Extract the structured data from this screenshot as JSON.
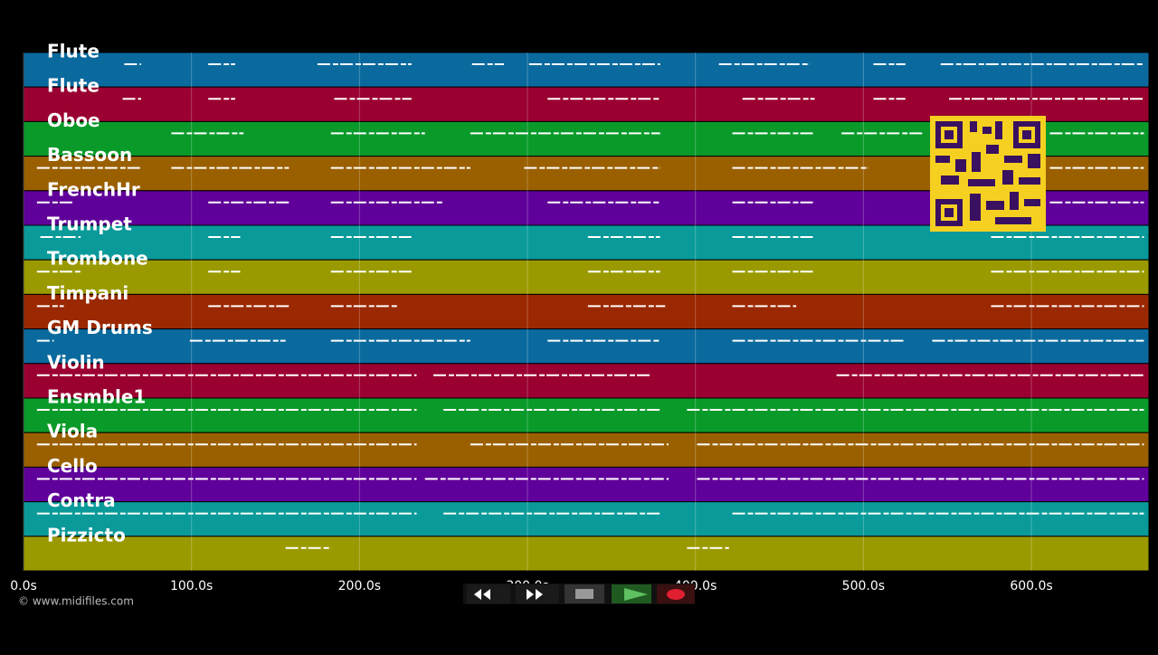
{
  "chart_data": {
    "type": "timeline",
    "xlim": [
      0,
      670
    ],
    "grid": true,
    "xticks": [
      {
        "value": 0,
        "label": "0.0s"
      },
      {
        "value": 100,
        "label": "100.0s"
      },
      {
        "value": 200,
        "label": "200.0s"
      },
      {
        "value": 300,
        "label": "300.0s"
      },
      {
        "value": 400,
        "label": "400.0s"
      },
      {
        "value": 500,
        "label": "500.0s"
      },
      {
        "value": 600,
        "label": "600.0s"
      }
    ],
    "tracks": [
      {
        "name": "Flute",
        "color": "#0a6a9e",
        "segments": [
          [
            60,
            70
          ],
          [
            110,
            126
          ],
          [
            175,
            231
          ],
          [
            267,
            286
          ],
          [
            301,
            379
          ],
          [
            414,
            468
          ],
          [
            506,
            525
          ],
          [
            546,
            667
          ]
        ]
      },
      {
        "name": "Flute",
        "color": "#9a0030",
        "segments": [
          [
            59,
            70
          ],
          [
            110,
            126
          ],
          [
            185,
            231
          ],
          [
            312,
            379
          ],
          [
            428,
            471
          ],
          [
            506,
            525
          ],
          [
            551,
            667
          ]
        ]
      },
      {
        "name": "Oboe",
        "color": "#0a9a2a",
        "segments": [
          [
            88,
            131
          ],
          [
            183,
            239
          ],
          [
            266,
            379
          ],
          [
            422,
            471
          ],
          [
            487,
            535
          ],
          [
            611,
            667
          ]
        ]
      },
      {
        "name": "Bassoon",
        "color": "#9a6000",
        "segments": [
          [
            8,
            70
          ],
          [
            88,
            158
          ],
          [
            183,
            266
          ],
          [
            298,
            379
          ],
          [
            422,
            503
          ],
          [
            611,
            667
          ]
        ]
      },
      {
        "name": "FrenchHr",
        "color": "#60009a",
        "segments": [
          [
            8,
            29
          ],
          [
            110,
            158
          ],
          [
            183,
            250
          ],
          [
            312,
            379
          ],
          [
            422,
            471
          ],
          [
            611,
            667
          ]
        ]
      },
      {
        "name": "Trumpet",
        "color": "#0a9a9a",
        "segments": [
          [
            10,
            34
          ],
          [
            110,
            129
          ],
          [
            183,
            231
          ],
          [
            336,
            379
          ],
          [
            422,
            471
          ],
          [
            576,
            667
          ]
        ]
      },
      {
        "name": "Trombone",
        "color": "#9a9a00",
        "segments": [
          [
            8,
            34
          ],
          [
            110,
            129
          ],
          [
            183,
            231
          ],
          [
            336,
            379
          ],
          [
            422,
            471
          ],
          [
            576,
            667
          ]
        ]
      },
      {
        "name": "Timpani",
        "color": "#9a2800",
        "segments": [
          [
            8,
            24
          ],
          [
            110,
            158
          ],
          [
            183,
            223
          ],
          [
            336,
            382
          ],
          [
            422,
            460
          ],
          [
            576,
            667
          ]
        ]
      },
      {
        "name": "GM Drums",
        "color": "#0a6a9e",
        "segments": [
          [
            8,
            18
          ],
          [
            99,
            156
          ],
          [
            183,
            266
          ],
          [
            312,
            379
          ],
          [
            422,
            525
          ],
          [
            541,
            667
          ]
        ]
      },
      {
        "name": "Violin",
        "color": "#9a0030",
        "segments": [
          [
            8,
            234
          ],
          [
            244,
            374
          ],
          [
            484,
            667
          ]
        ]
      },
      {
        "name": "Ensmble1",
        "color": "#0a9a2a",
        "segments": [
          [
            8,
            234
          ],
          [
            250,
            379
          ],
          [
            395,
            667
          ]
        ]
      },
      {
        "name": "Viola",
        "color": "#9a6000",
        "segments": [
          [
            8,
            234
          ],
          [
            266,
            384
          ],
          [
            401,
            667
          ]
        ]
      },
      {
        "name": "Cello",
        "color": "#60009a",
        "segments": [
          [
            8,
            234
          ],
          [
            239,
            384
          ],
          [
            401,
            667
          ]
        ]
      },
      {
        "name": "Contra",
        "color": "#0a9a9a",
        "segments": [
          [
            8,
            234
          ],
          [
            250,
            379
          ],
          [
            422,
            667
          ]
        ]
      },
      {
        "name": "Pizzicto",
        "color": "#9a9a00",
        "segments": [
          [
            156,
            183
          ],
          [
            395,
            420
          ]
        ]
      }
    ]
  },
  "footer": {
    "copyright": "© www.midifiles.com"
  }
}
